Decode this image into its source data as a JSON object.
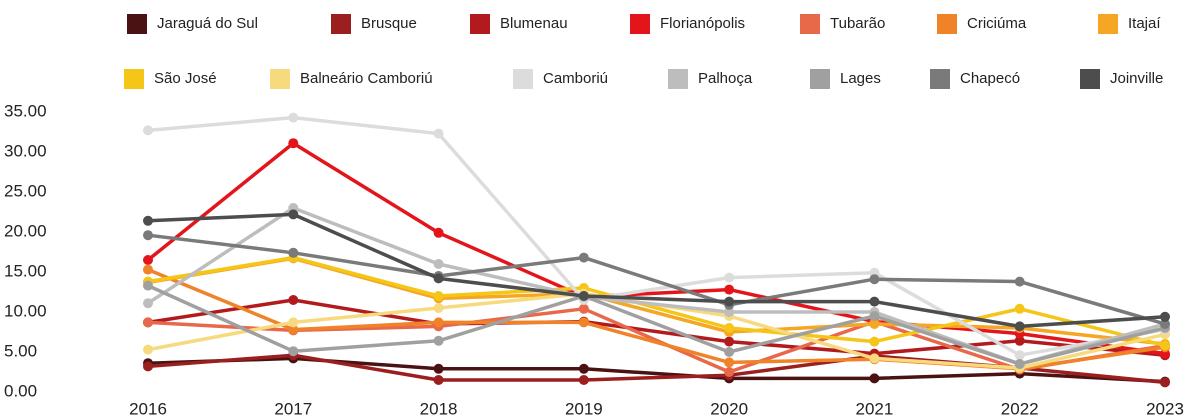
{
  "chart_data": {
    "type": "line",
    "x": [
      "2016",
      "2017",
      "2018",
      "2019",
      "2020",
      "2021",
      "2022",
      "2023"
    ],
    "ylim": [
      0,
      35
    ],
    "yticks": [
      {
        "value": 0,
        "label": "0.00"
      },
      {
        "value": 5,
        "label": "5.00"
      },
      {
        "value": 10,
        "label": "10.00"
      },
      {
        "value": 15,
        "label": "15.00"
      },
      {
        "value": 20,
        "label": "20.00"
      },
      {
        "value": 25,
        "label": "25.00"
      },
      {
        "value": 30,
        "label": "30.00"
      },
      {
        "value": 35,
        "label": "35.00"
      }
    ],
    "grid": false,
    "legend": "top",
    "series": [
      {
        "name": "Jaraguá do Sul",
        "color": "#4a1212",
        "values": [
          3.6,
          4.2,
          2.9,
          2.9,
          1.7,
          1.7,
          2.3,
          1.3
        ]
      },
      {
        "name": "Brusque",
        "color": "#9b1f1f",
        "values": [
          3.2,
          4.6,
          1.5,
          1.5,
          2.1,
          4.5,
          3.0,
          1.2
        ]
      },
      {
        "name": "Blumenau",
        "color": "#b21b1e",
        "values": [
          8.7,
          11.5,
          8.5,
          8.8,
          6.3,
          4.8,
          6.4,
          4.6
        ]
      },
      {
        "name": "Florianópolis",
        "color": "#e3151a",
        "values": [
          16.5,
          31.1,
          19.9,
          11.9,
          12.8,
          8.8,
          7.3,
          4.8
        ]
      },
      {
        "name": "Tubarão",
        "color": "#e8694a",
        "values": [
          8.7,
          7.7,
          8.2,
          10.4,
          2.5,
          8.8,
          2.8,
          5.8
        ]
      },
      {
        "name": "Criciúma",
        "color": "#f08228",
        "values": [
          15.3,
          7.8,
          8.7,
          8.7,
          3.7,
          4.1,
          2.9,
          5.6
        ]
      },
      {
        "name": "Itajaí",
        "color": "#f5a623",
        "values": [
          13.7,
          16.7,
          11.7,
          12.3,
          7.5,
          8.5,
          8.0,
          6.0
        ]
      },
      {
        "name": "São José",
        "color": "#f5c518",
        "values": [
          13.8,
          16.8,
          12.0,
          13.0,
          8.0,
          6.3,
          10.4,
          5.8
        ]
      },
      {
        "name": "Balneário Camboriú",
        "color": "#f7da7e",
        "values": [
          5.3,
          8.7,
          10.5,
          12.3,
          9.5,
          4.2,
          3.0,
          7.2
        ]
      },
      {
        "name": "Camboriú",
        "color": "#dcdcdc",
        "values": [
          32.7,
          34.3,
          32.3,
          11.5,
          14.3,
          14.9,
          4.6,
          7.8
        ]
      },
      {
        "name": "Palhoça",
        "color": "#bdbdbd",
        "values": [
          11.1,
          23.0,
          16.0,
          11.9,
          10.0,
          10.0,
          3.5,
          8.5
        ]
      },
      {
        "name": "Lages",
        "color": "#a0a0a0",
        "values": [
          13.3,
          5.1,
          6.4,
          12.0,
          5.0,
          9.5,
          3.5,
          8.0
        ]
      },
      {
        "name": "Chapecó",
        "color": "#7a7a7a",
        "values": [
          19.6,
          17.4,
          14.5,
          16.8,
          10.9,
          14.1,
          13.8,
          8.5
        ]
      },
      {
        "name": "Joinville",
        "color": "#4d4d4d",
        "values": [
          21.4,
          22.2,
          14.2,
          12.0,
          11.3,
          11.3,
          8.2,
          9.4
        ]
      }
    ]
  }
}
